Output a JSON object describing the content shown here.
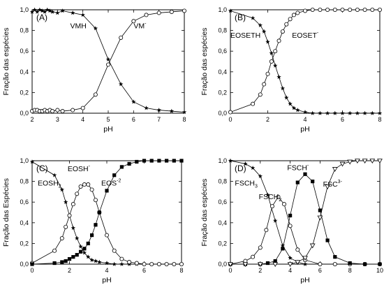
{
  "chart_data": [
    {
      "panel_label": "(A)",
      "type": "line",
      "xlabel": "pH",
      "ylabel": "Fração das espécies",
      "xlim": [
        2,
        8
      ],
      "ylim": [
        0.0,
        1.0
      ],
      "xticks": [
        "2",
        "3",
        "4",
        "5",
        "6",
        "7",
        "8"
      ],
      "yticks": [
        "0,0",
        "0,2",
        "0,4",
        "0,6",
        "0,8",
        "1,0"
      ],
      "annotations": [
        {
          "base": "VMH",
          "sup": "",
          "sub": "",
          "x": 3.5,
          "y": 0.82
        },
        {
          "base": "VM",
          "sup": "-",
          "sub": "",
          "x": 6.0,
          "y": 0.82
        }
      ],
      "series": [
        {
          "marker": "star",
          "x": [
            2.0,
            2.1,
            2.2,
            2.3,
            2.4,
            2.5,
            2.6,
            2.7,
            2.8,
            3.0,
            3.2,
            3.6,
            4.0,
            4.5,
            5.0,
            5.5,
            6.0,
            6.5,
            7.0,
            7.5,
            8.0
          ],
          "y": [
            0.98,
            1.0,
            0.98,
            1.0,
            0.99,
            0.98,
            1.0,
            0.99,
            0.98,
            0.97,
            0.99,
            0.97,
            0.95,
            0.82,
            0.52,
            0.28,
            0.11,
            0.05,
            0.03,
            0.02,
            0.01
          ]
        },
        {
          "marker": "circle",
          "x": [
            2.0,
            2.1,
            2.2,
            2.3,
            2.4,
            2.5,
            2.6,
            2.7,
            2.8,
            3.0,
            3.2,
            3.6,
            4.0,
            4.5,
            5.0,
            5.5,
            6.0,
            6.5,
            7.0,
            7.5,
            8.0
          ],
          "y": [
            0.02,
            0.03,
            0.03,
            0.02,
            0.02,
            0.03,
            0.02,
            0.03,
            0.02,
            0.03,
            0.02,
            0.03,
            0.05,
            0.18,
            0.47,
            0.73,
            0.89,
            0.95,
            0.97,
            0.98,
            0.99
          ]
        }
      ]
    },
    {
      "panel_label": "(B)",
      "type": "line",
      "xlabel": "pH",
      "ylabel": "Fração das espécies",
      "xlim": [
        0,
        8
      ],
      "ylim": [
        0.0,
        1.0
      ],
      "xticks": [
        "0",
        "2",
        "4",
        "6",
        "8"
      ],
      "yticks": [
        "0,0",
        "0,2",
        "0,4",
        "0,6",
        "0,8",
        "1,0"
      ],
      "annotations": [
        {
          "base": "EOSETH",
          "sup": "",
          "sub": "",
          "x": 0.0,
          "y": 0.73
        },
        {
          "base": "EOSET",
          "sup": "-",
          "sub": "",
          "x": 3.3,
          "y": 0.73
        }
      ],
      "series": [
        {
          "marker": "star",
          "x": [
            0.0,
            1.2,
            1.6,
            1.8,
            2.0,
            2.2,
            2.4,
            2.6,
            2.8,
            3.0,
            3.2,
            3.4,
            3.6,
            4.0,
            4.4,
            4.8,
            5.2,
            5.6,
            6.0,
            6.4,
            6.8,
            7.2,
            7.6,
            8.0
          ],
          "y": [
            0.99,
            0.92,
            0.85,
            0.79,
            0.69,
            0.58,
            0.46,
            0.35,
            0.24,
            0.15,
            0.09,
            0.05,
            0.03,
            0.01,
            0.0,
            0.0,
            0.0,
            0.0,
            0.0,
            0.0,
            0.0,
            0.0,
            0.0,
            0.0
          ]
        },
        {
          "marker": "circle",
          "x": [
            0.0,
            1.2,
            1.6,
            1.8,
            2.0,
            2.2,
            2.4,
            2.6,
            2.8,
            3.0,
            3.2,
            3.4,
            3.6,
            4.0,
            4.4,
            4.8,
            5.2,
            5.6,
            6.0,
            6.4,
            6.8,
            7.2,
            7.6,
            8.0
          ],
          "y": [
            0.01,
            0.09,
            0.18,
            0.28,
            0.38,
            0.5,
            0.6,
            0.7,
            0.79,
            0.86,
            0.91,
            0.95,
            0.97,
            0.99,
            1.0,
            1.0,
            1.0,
            1.0,
            1.0,
            1.0,
            1.0,
            1.0,
            1.0,
            1.0
          ]
        }
      ]
    },
    {
      "panel_label": "(C)",
      "type": "line",
      "xlabel": "pH",
      "ylabel": "Fração das Espécies",
      "xlim": [
        0,
        8
      ],
      "ylim": [
        0.0,
        1.0
      ],
      "xticks": [
        "0",
        "2",
        "4",
        "6",
        "8"
      ],
      "yticks": [
        "0,0",
        "0,2",
        "0,4",
        "0,6",
        "0,8",
        "1,0"
      ],
      "annotations": [
        {
          "base": "EOSH",
          "sup": "",
          "sub": "2",
          "x": 0.3,
          "y": 0.76
        },
        {
          "base": "EOSH",
          "sup": "-",
          "sub": "",
          "x": 1.9,
          "y": 0.9
        },
        {
          "base": "EOS",
          "sup": "-2",
          "sub": "",
          "x": 3.7,
          "y": 0.76
        }
      ],
      "series": [
        {
          "marker": "star",
          "x": [
            0.0,
            1.2,
            1.6,
            1.8,
            2.0,
            2.2,
            2.4,
            2.6,
            2.8,
            3.0,
            3.2,
            3.4,
            3.6,
            4.0,
            4.4,
            4.8,
            5.2,
            5.6,
            6.0,
            6.4,
            6.8,
            7.2,
            7.6,
            8.0
          ],
          "y": [
            0.99,
            0.86,
            0.72,
            0.6,
            0.47,
            0.35,
            0.25,
            0.17,
            0.11,
            0.07,
            0.04,
            0.03,
            0.02,
            0.01,
            0.0,
            0.0,
            0.0,
            0.0,
            0.0,
            0.0,
            0.0,
            0.0,
            0.0,
            0.0
          ]
        },
        {
          "marker": "circle",
          "x": [
            0.0,
            1.2,
            1.6,
            1.8,
            2.0,
            2.2,
            2.4,
            2.6,
            2.8,
            3.0,
            3.2,
            3.4,
            3.6,
            4.0,
            4.4,
            4.8,
            5.2,
            5.6,
            6.0,
            6.4,
            6.8,
            7.2,
            7.6,
            8.0
          ],
          "y": [
            0.01,
            0.13,
            0.25,
            0.36,
            0.47,
            0.58,
            0.68,
            0.75,
            0.77,
            0.77,
            0.72,
            0.62,
            0.5,
            0.28,
            0.13,
            0.05,
            0.02,
            0.01,
            0.0,
            0.0,
            0.0,
            0.0,
            0.0,
            0.0
          ]
        },
        {
          "marker": "square",
          "x": [
            0.0,
            1.2,
            1.6,
            1.8,
            2.0,
            2.2,
            2.4,
            2.6,
            2.8,
            3.0,
            3.2,
            3.4,
            3.6,
            4.0,
            4.4,
            4.8,
            5.2,
            5.6,
            6.0,
            6.4,
            6.8,
            7.2,
            7.6,
            8.0
          ],
          "y": [
            0.0,
            0.01,
            0.02,
            0.03,
            0.05,
            0.07,
            0.09,
            0.12,
            0.15,
            0.2,
            0.28,
            0.38,
            0.5,
            0.71,
            0.86,
            0.94,
            0.97,
            0.99,
            1.0,
            1.0,
            1.0,
            1.0,
            1.0,
            1.0
          ]
        }
      ]
    },
    {
      "panel_label": "(D)",
      "type": "line",
      "xlabel": "pH",
      "ylabel": "Fração das espécies",
      "xlim": [
        0,
        10
      ],
      "ylim": [
        0.0,
        1.0
      ],
      "xticks": [
        "0",
        "2",
        "4",
        "6",
        "8",
        "10"
      ],
      "yticks": [
        "0,0",
        "0,2",
        "0,4",
        "0,6",
        "0,8",
        "1,0"
      ],
      "annotations": [
        {
          "base": "FSCH",
          "sup": "",
          "sub": "3",
          "x": 0.3,
          "y": 0.76
        },
        {
          "base": "FSCH",
          "sup": "",
          "sub": "2",
          "x": 1.9,
          "y": 0.63
        },
        {
          "base": "FSCH",
          "sup": "-",
          "sub": "",
          "x": 3.8,
          "y": 0.91
        },
        {
          "base": "FSC",
          "sup": "3-",
          "sub": "",
          "x": 6.2,
          "y": 0.75
        }
      ],
      "series": [
        {
          "marker": "star",
          "x": [
            0.0,
            1.0,
            1.5,
            2.0,
            2.5,
            3.0,
            3.5,
            4.0,
            4.5,
            5.0,
            6.0,
            7.0,
            8.0,
            9.0,
            10.0
          ],
          "y": [
            1.0,
            0.97,
            0.93,
            0.85,
            0.67,
            0.42,
            0.18,
            0.06,
            0.02,
            0.0,
            0.0,
            0.0,
            0.0,
            0.0,
            0.0
          ]
        },
        {
          "marker": "circle",
          "x": [
            0.0,
            1.0,
            1.5,
            2.0,
            2.4,
            2.8,
            3.2,
            3.6,
            4.0,
            4.5,
            5.0,
            6.0,
            7.0,
            8.0,
            9.0,
            10.0
          ],
          "y": [
            0.0,
            0.03,
            0.07,
            0.16,
            0.33,
            0.56,
            0.65,
            0.58,
            0.37,
            0.14,
            0.04,
            0.0,
            0.0,
            0.0,
            0.0,
            0.0
          ]
        },
        {
          "marker": "square",
          "x": [
            0.0,
            1.0,
            2.0,
            2.5,
            3.0,
            3.5,
            4.0,
            4.5,
            5.0,
            5.5,
            6.0,
            6.5,
            7.0,
            8.0,
            9.0,
            10.0
          ],
          "y": [
            0.0,
            0.0,
            0.0,
            0.01,
            0.03,
            0.15,
            0.47,
            0.79,
            0.87,
            0.8,
            0.52,
            0.23,
            0.07,
            0.01,
            0.0,
            0.0
          ]
        },
        {
          "marker": "triangle-down",
          "x": [
            0.0,
            1.0,
            2.0,
            3.0,
            4.0,
            4.5,
            5.0,
            5.5,
            6.0,
            6.5,
            7.0,
            7.5,
            8.0,
            8.5,
            9.0,
            9.5,
            10.0
          ],
          "y": [
            0.0,
            0.0,
            0.0,
            0.0,
            0.0,
            0.02,
            0.06,
            0.18,
            0.45,
            0.75,
            0.92,
            0.97,
            0.99,
            1.0,
            1.0,
            1.0,
            1.0
          ]
        }
      ]
    }
  ]
}
